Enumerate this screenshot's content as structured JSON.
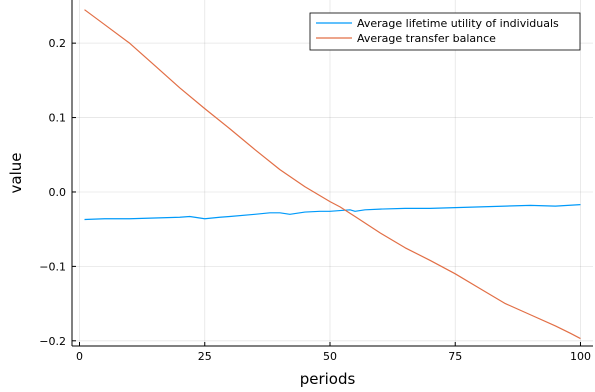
{
  "chart_data": {
    "type": "line",
    "xlabel": "periods",
    "ylabel": "value",
    "xlim": [
      -1.5,
      102.5
    ],
    "ylim": [
      -0.207,
      0.258
    ],
    "xticks": [
      0,
      25,
      50,
      75,
      100
    ],
    "yticks": [
      -0.2,
      -0.1,
      0.0,
      0.1,
      0.2
    ],
    "xtick_labels": [
      "0",
      "25",
      "50",
      "75",
      "100"
    ],
    "ytick_labels": [
      "−0.2",
      "−0.1",
      "0.0",
      "0.1",
      "0.2"
    ],
    "grid": true,
    "legend_position": "top-right",
    "series": [
      {
        "name": "Average lifetime utility of individuals",
        "color": "#009AFA",
        "x": [
          1,
          5,
          10,
          15,
          20,
          22,
          25,
          28,
          30,
          35,
          38,
          40,
          42,
          45,
          48,
          50,
          52,
          54,
          55,
          57,
          60,
          65,
          70,
          75,
          80,
          85,
          90,
          95,
          100
        ],
        "y": [
          -0.037,
          -0.036,
          -0.036,
          -0.035,
          -0.034,
          -0.033,
          -0.036,
          -0.034,
          -0.033,
          -0.03,
          -0.028,
          -0.028,
          -0.03,
          -0.027,
          -0.026,
          -0.026,
          -0.025,
          -0.024,
          -0.026,
          -0.024,
          -0.023,
          -0.022,
          -0.022,
          -0.021,
          -0.02,
          -0.019,
          -0.018,
          -0.019,
          -0.017
        ]
      },
      {
        "name": "Average transfer balance",
        "color": "#E26F46",
        "x": [
          1,
          5,
          10,
          15,
          20,
          25,
          30,
          35,
          40,
          45,
          50,
          52,
          55,
          60,
          65,
          70,
          75,
          80,
          85,
          90,
          95,
          98,
          100
        ],
        "y": [
          0.245,
          0.225,
          0.2,
          0.17,
          0.14,
          0.112,
          0.085,
          0.057,
          0.03,
          0.007,
          -0.013,
          -0.02,
          -0.033,
          -0.055,
          -0.075,
          -0.092,
          -0.11,
          -0.13,
          -0.15,
          -0.165,
          -0.18,
          -0.19,
          -0.197
        ]
      }
    ]
  }
}
